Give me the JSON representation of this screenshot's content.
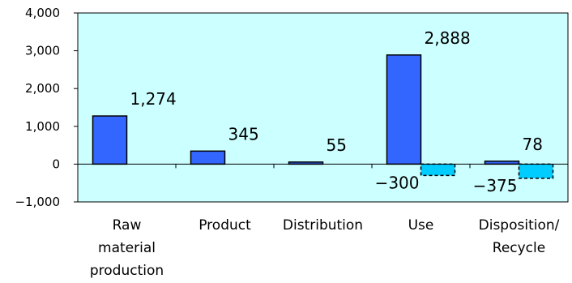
{
  "chart_data": {
    "type": "bar",
    "title": "",
    "xlabel": "",
    "ylabel": "",
    "ylim": [
      -1000,
      4000
    ],
    "yticks": [
      4000,
      3000,
      2000,
      1000,
      0,
      -1000
    ],
    "ytick_labels": [
      "4,000",
      "3,000",
      "2,000",
      "1,000",
      "0",
      "−1,000"
    ],
    "grid": false,
    "plot_background": "#ccffff",
    "categories": [
      [
        "Raw",
        "material",
        "production"
      ],
      [
        "Product"
      ],
      [
        "Distribution"
      ],
      [
        "Use"
      ],
      [
        "Disposition/",
        "Recycle"
      ]
    ],
    "series": [
      {
        "color": "#3366ff",
        "dashed": false,
        "values": [
          1274,
          345,
          55,
          2888,
          78
        ],
        "labels": [
          "1,274",
          "345",
          "55",
          "2,888",
          "78"
        ]
      },
      {
        "color": "#00ccff",
        "dashed": true,
        "values": [
          null,
          null,
          null,
          -300,
          -375
        ],
        "labels": [
          "",
          "",
          "",
          "−300",
          "−375"
        ]
      }
    ]
  }
}
